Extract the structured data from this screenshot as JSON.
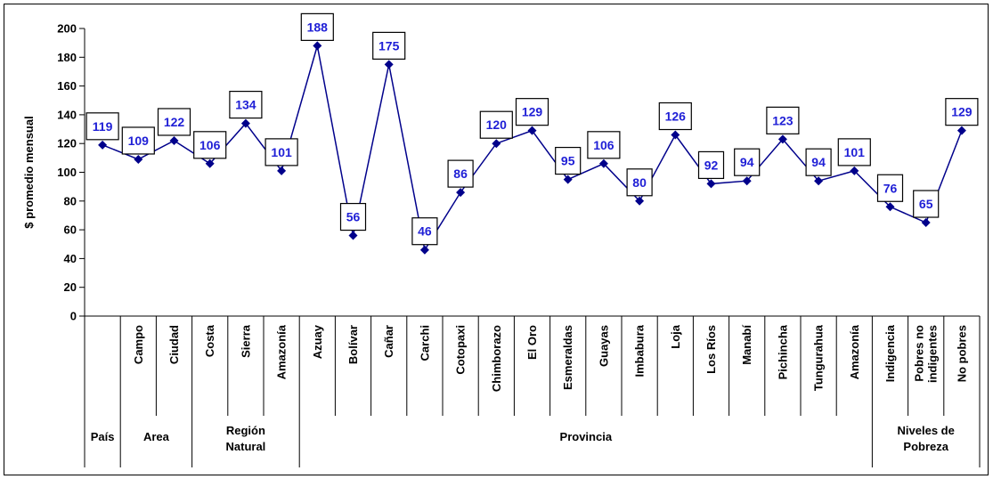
{
  "chart_data": {
    "type": "line",
    "ylabel": "$ promedio mensual",
    "ylim": [
      0,
      200
    ],
    "yticks": [
      0,
      20,
      40,
      60,
      80,
      100,
      120,
      140,
      160,
      180,
      200
    ],
    "categories": [
      "",
      "Campo",
      "Ciudad",
      "Costa",
      "Sierra",
      "Amazonía",
      "Azuay",
      "Bolívar",
      "Cañar",
      "Carchi",
      "Cotopaxi",
      "Chimborazo",
      "El Oro",
      "Esmeraldas",
      "Guayas",
      "Imbabura",
      "Loja",
      "Los Ríos",
      "Manabí",
      "Pichincha",
      "Tungurahua",
      "Amazonía",
      "Indigencia",
      "Pobres no indigentes",
      "No pobres"
    ],
    "values": [
      119,
      109,
      122,
      106,
      134,
      101,
      188,
      56,
      175,
      46,
      86,
      120,
      129,
      95,
      106,
      80,
      126,
      92,
      94,
      123,
      94,
      101,
      76,
      65,
      129
    ],
    "data_labels": [
      "119",
      "109",
      "122",
      "106",
      "134",
      "101",
      "188",
      "56",
      "175",
      "46",
      "86",
      "120",
      "129",
      "95",
      "106",
      "80",
      "126",
      "92",
      "94",
      "123",
      "94",
      "101",
      "76",
      "65",
      "129"
    ],
    "groups": [
      {
        "label": "País",
        "start": 0,
        "end": 0
      },
      {
        "label": "Area",
        "start": 1,
        "end": 2
      },
      {
        "label": "Región Natural",
        "start": 3,
        "end": 5
      },
      {
        "label": "Provincia",
        "start": 6,
        "end": 21
      },
      {
        "label": "Niveles de Pobreza",
        "start": 22,
        "end": 24
      }
    ],
    "grid": false,
    "legend": "none",
    "colors": {
      "line": "#00008b",
      "marker": "#00008b",
      "label": "#1f1fd6"
    }
  }
}
